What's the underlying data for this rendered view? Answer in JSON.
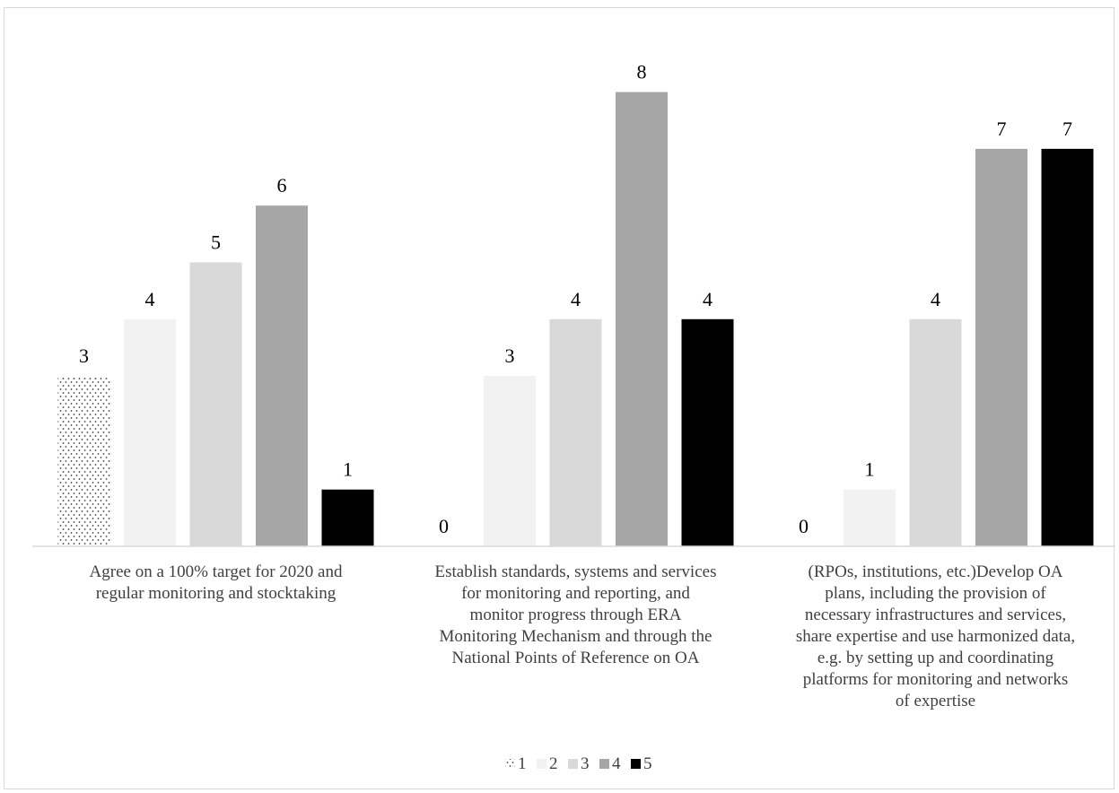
{
  "chart_data": {
    "type": "bar",
    "categories": [
      "Agree on a 100% target for 2020 and regular monitoring and stocktaking",
      "Establish standards, systems and services for monitoring and reporting, and monitor progress through ERA Monitoring Mechanism and through the National Points of Reference on OA",
      "(RPOs, institutions, etc.)Develop OA plans, including the provision of necessary infrastructures and services, share expertise and use harmonized data, e.g. by setting up and coordinating platforms for monitoring and networks of expertise"
    ],
    "category_lines": [
      [
        "Agree on a 100% target for 2020 and",
        "regular monitoring and stocktaking"
      ],
      [
        "Establish standards, systems and services",
        "for monitoring and reporting, and",
        "monitor progress through ERA",
        "Monitoring Mechanism and through the",
        "National Points of Reference on OA"
      ],
      [
        "(RPOs, institutions, etc.)Develop OA",
        "plans, including the provision of",
        "necessary infrastructures and services,",
        "share expertise and use harmonized data,",
        "e.g. by setting up and coordinating",
        "platforms for monitoring and networks",
        "of expertise"
      ]
    ],
    "series": [
      {
        "name": "1",
        "values": [
          3,
          0,
          0
        ],
        "color": "#ffffff",
        "pattern": "dotted"
      },
      {
        "name": "2",
        "values": [
          4,
          3,
          1
        ],
        "color": "#f2f2f2"
      },
      {
        "name": "3",
        "values": [
          5,
          4,
          4
        ],
        "color": "#d9d9d9"
      },
      {
        "name": "4",
        "values": [
          6,
          8,
          7
        ],
        "color": "#a6a6a6"
      },
      {
        "name": "5",
        "values": [
          1,
          4,
          7
        ],
        "color": "#000000"
      }
    ],
    "ylim": [
      0,
      8
    ],
    "grid": false,
    "legend_position": "bottom",
    "title": "",
    "xlabel": "",
    "ylabel": ""
  }
}
